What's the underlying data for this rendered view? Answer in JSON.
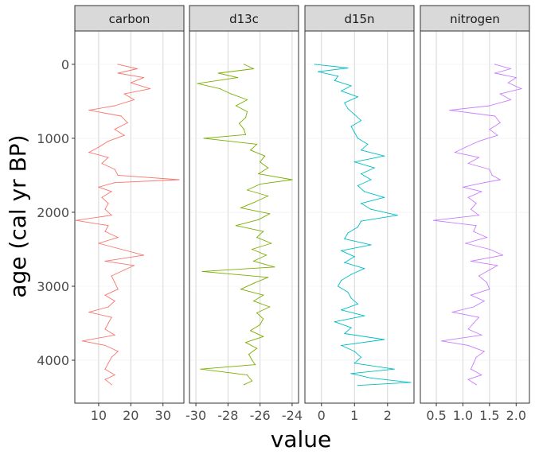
{
  "chart_data": {
    "type": "line",
    "xlabel": "value",
    "ylabel": "age (cal yr BP)",
    "y_reversed": true,
    "ylim": [
      -450,
      4580
    ],
    "y_ticks": [
      0,
      1000,
      2000,
      3000,
      4000
    ],
    "grid": true,
    "legend": "none",
    "panels": [
      {
        "name": "carbon",
        "color": "#F8766D",
        "xlim": [
          2.6,
          36.5
        ],
        "x_ticks": [
          10,
          20,
          30
        ],
        "series": {
          "age": [
            0,
            60,
            120,
            180,
            250,
            330,
            400,
            480,
            560,
            620,
            700,
            790,
            880,
            960,
            1040,
            1120,
            1190,
            1260,
            1340,
            1420,
            1500,
            1560,
            1600,
            1660,
            1720,
            1800,
            1880,
            1960,
            2040,
            2110,
            2180,
            2260,
            2340,
            2420,
            2500,
            2580,
            2660,
            2720,
            2780,
            2860,
            2950,
            3040,
            3120,
            3200,
            3280,
            3350,
            3420,
            3500,
            3580,
            3660,
            3740,
            3800,
            3880,
            3960,
            4040,
            4120,
            4200,
            4260,
            4330
          ],
          "value": [
            16,
            22,
            16,
            24,
            20,
            26,
            18,
            21,
            15,
            7,
            17,
            19,
            15,
            18,
            13,
            10,
            7,
            13,
            11,
            15,
            16,
            35,
            15,
            10,
            14,
            11,
            13,
            12,
            14,
            3,
            13,
            12,
            16,
            10,
            17,
            24,
            12,
            21,
            18,
            14,
            15,
            16,
            12,
            15,
            13,
            7,
            14,
            13,
            12,
            15,
            5,
            12,
            16,
            14,
            13,
            12,
            15,
            12,
            14
          ]
        }
      },
      {
        "name": "d13c",
        "color": "#7CAE00",
        "xlim": [
          -30.4,
          -23.6
        ],
        "x_ticks": [
          -30,
          -28,
          -26,
          -24
        ],
        "series": {
          "age": [
            0,
            60,
            120,
            180,
            260,
            330,
            400,
            480,
            560,
            640,
            720,
            800,
            880,
            950,
            1000,
            1080,
            1160,
            1240,
            1320,
            1400,
            1480,
            1560,
            1620,
            1700,
            1780,
            1860,
            1940,
            2020,
            2100,
            2180,
            2260,
            2340,
            2420,
            2500,
            2580,
            2660,
            2740,
            2800,
            2880,
            2960,
            3040,
            3120,
            3200,
            3280,
            3360,
            3440,
            3520,
            3600,
            3680,
            3760,
            3840,
            3920,
            4000,
            4060,
            4120,
            4200,
            4280,
            4330
          ],
          "value": [
            -27,
            -26.4,
            -28.6,
            -27.4,
            -29.9,
            -28.5,
            -27.8,
            -26.8,
            -27.5,
            -26.8,
            -26.9,
            -27.3,
            -27,
            -26.9,
            -29.5,
            -26.2,
            -26.6,
            -25.7,
            -26,
            -25.5,
            -26.1,
            -24,
            -26,
            -26.8,
            -25.5,
            -26.3,
            -27.2,
            -25.4,
            -26.1,
            -27.5,
            -25.8,
            -26.2,
            -25.3,
            -26.5,
            -25.6,
            -26.4,
            -25.1,
            -29.6,
            -25.5,
            -26.4,
            -27.2,
            -25.8,
            -26.4,
            -25.4,
            -26.2,
            -25.8,
            -26,
            -26.6,
            -25.8,
            -26.9,
            -26.2,
            -26.7,
            -26.5,
            -26.3,
            -29.7,
            -26.8,
            -26.5,
            -27
          ]
        }
      },
      {
        "name": "d15n",
        "color": "#00BFC4",
        "xlim": [
          -0.5,
          2.8
        ],
        "x_ticks": [
          0,
          1,
          2
        ],
        "series": {
          "age": [
            0,
            50,
            100,
            160,
            220,
            290,
            360,
            440,
            520,
            600,
            680,
            760,
            840,
            920,
            1000,
            1080,
            1160,
            1240,
            1320,
            1400,
            1480,
            1560,
            1640,
            1720,
            1800,
            1880,
            1960,
            2040,
            2120,
            2200,
            2280,
            2360,
            2440,
            2520,
            2600,
            2680,
            2760,
            2840,
            2920,
            3000,
            3080,
            3160,
            3240,
            3320,
            3400,
            3480,
            3560,
            3640,
            3720,
            3800,
            3880,
            3960,
            4040,
            4120,
            4180,
            4240,
            4300,
            4340
          ],
          "value": [
            -0.2,
            0.8,
            -0.1,
            0.5,
            0.4,
            0.9,
            0.6,
            1.1,
            0.7,
            0.8,
            1.0,
            1.2,
            0.9,
            1.0,
            1.1,
            1.4,
            1.2,
            1.9,
            1.0,
            1.6,
            1.2,
            1.5,
            1.1,
            1.3,
            1.9,
            1.2,
            1.5,
            2.3,
            1.2,
            1.1,
            0.8,
            0.7,
            1.5,
            0.6,
            1.0,
            0.7,
            1.3,
            0.9,
            0.6,
            0.5,
            0.8,
            0.9,
            1.1,
            0.6,
            1.3,
            0.4,
            0.9,
            0.7,
            1.9,
            0.6,
            1.0,
            1.2,
            1.0,
            2.2,
            0.9,
            1.5,
            2.7,
            1.1
          ]
        }
      },
      {
        "name": "nitrogen",
        "color": "#C77CFF",
        "xlim": [
          0.2,
          2.25
        ],
        "x_ticks": [
          0.5,
          1.0,
          1.5,
          2.0
        ],
        "x_tick_labels": [
          "0.5",
          "1.0",
          "1.5",
          "2.0"
        ],
        "series": {
          "age": [
            0,
            60,
            120,
            180,
            250,
            330,
            400,
            480,
            560,
            620,
            700,
            790,
            880,
            960,
            1040,
            1120,
            1190,
            1260,
            1340,
            1420,
            1500,
            1560,
            1600,
            1660,
            1720,
            1800,
            1880,
            1960,
            2040,
            2110,
            2180,
            2260,
            2340,
            2420,
            2500,
            2580,
            2660,
            2720,
            2780,
            2860,
            2950,
            3040,
            3120,
            3200,
            3280,
            3350,
            3420,
            3500,
            3580,
            3660,
            3740,
            3800,
            3880,
            3960,
            4040,
            4120,
            4200,
            4260,
            4330
          ],
          "value": [
            1.6,
            1.9,
            1.6,
            2.0,
            1.85,
            2.1,
            1.7,
            1.9,
            1.5,
            0.75,
            1.6,
            1.7,
            1.5,
            1.65,
            1.3,
            1.05,
            0.85,
            1.3,
            1.1,
            1.5,
            1.55,
            1.7,
            1.4,
            1.0,
            1.35,
            1.1,
            1.25,
            1.15,
            1.3,
            0.45,
            1.25,
            1.2,
            1.45,
            1.05,
            1.5,
            1.75,
            1.15,
            1.65,
            1.5,
            1.3,
            1.45,
            1.5,
            1.15,
            1.4,
            1.2,
            0.8,
            1.3,
            1.2,
            1.1,
            1.35,
            0.6,
            1.1,
            1.4,
            1.25,
            1.2,
            1.15,
            1.35,
            1.1,
            1.25
          ]
        }
      }
    ]
  }
}
